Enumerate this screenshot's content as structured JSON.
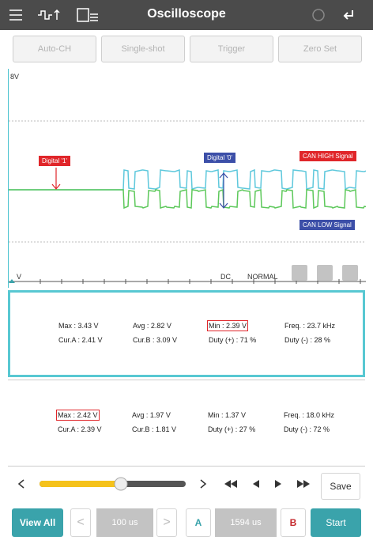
{
  "header": {
    "title": "Oscilloscope"
  },
  "toolbar": {
    "buttons": [
      "Auto-CH",
      "Single-shot",
      "Trigger",
      "Zero Set"
    ]
  },
  "scope": {
    "top_label": "8V",
    "bottom_label": "V",
    "annotations": [
      "Digital '1'",
      "Digital '0'",
      "CAN HIGH Signal",
      "CAN LOW Signal"
    ],
    "coupling": "DC",
    "mode": "NORMAL"
  },
  "measurements": [
    {
      "rows": [
        [
          "Max : 3.43 V",
          "Avg : 2.82 V",
          "Min : 2.39 V",
          "Freq. : 23.7 kHz"
        ],
        [
          "Cur.A : 2.41 V",
          "Cur.B : 3.09 V",
          "Duty (+) : 71 %",
          "Duty (-) : 28 %"
        ]
      ]
    },
    {
      "rows": [
        [
          "Max : 2.42 V",
          "Avg : 1.97 V",
          "Min : 1.37 V",
          "Freq. : 18.0 kHz"
        ],
        [
          "Cur.A : 2.39 V",
          "Cur.B : 1.81 V",
          "Duty (+) : 27 %",
          "Duty (-) : 72 %"
        ]
      ]
    }
  ],
  "controls": {
    "save": "Save",
    "view_all": "View All",
    "time_div": "100 us",
    "cursor_a": "A",
    "cursor_position": "1594 us",
    "cursor_b": "B",
    "start": "Start"
  }
}
